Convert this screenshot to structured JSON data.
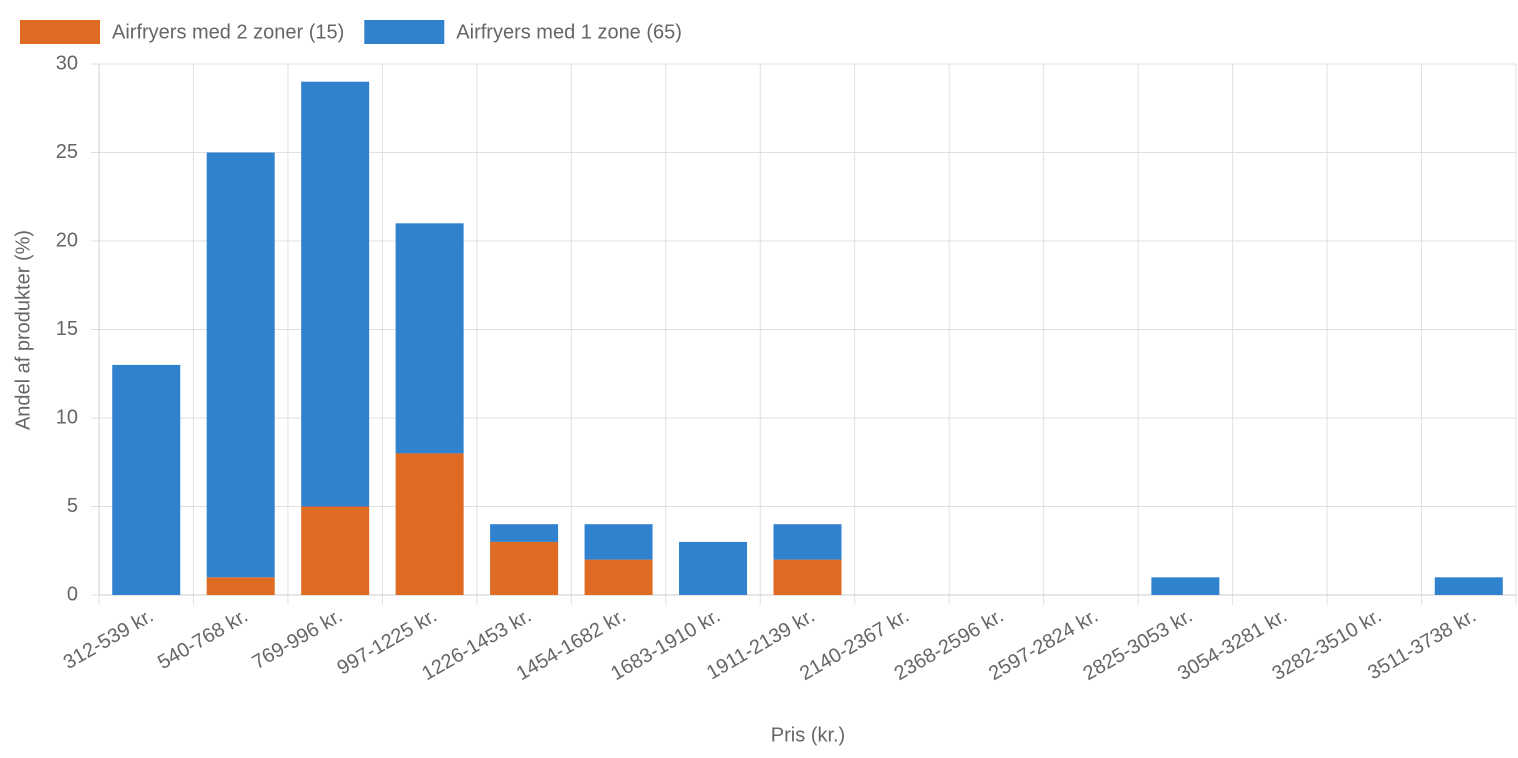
{
  "chart_data": {
    "type": "stacked_bar",
    "categories": [
      "312-539 kr.",
      "540-768 kr.",
      "769-996 kr.",
      "997-1225 kr.",
      "1226-1453 kr.",
      "1454-1682 kr.",
      "1683-1910 kr.",
      "1911-2139 kr.",
      "2140-2367 kr.",
      "2368-2596 kr.",
      "2597-2824 kr.",
      "2825-3053 kr.",
      "3054-3281 kr.",
      "3282-3510 kr.",
      "3511-3738 kr."
    ],
    "series": [
      {
        "name": "Airfryers med 2 zoner (15)",
        "color": "#de6b21",
        "values": [
          0,
          1,
          5,
          8,
          3,
          2,
          0,
          2,
          0,
          0,
          0,
          0,
          0,
          0,
          0
        ]
      },
      {
        "name": "Airfryers med 1 zone (65)",
        "color": "#3182ce",
        "values": [
          13,
          24,
          24,
          13,
          1,
          2,
          3,
          2,
          0,
          0,
          0,
          1,
          0,
          0,
          1
        ]
      }
    ],
    "xlabel": "Pris (kr.)",
    "ylabel": "Andel af produkter (%)",
    "ylim": [
      0,
      30
    ],
    "yticks": [
      0,
      5,
      10,
      15,
      20,
      25,
      30
    ],
    "grid": true
  }
}
